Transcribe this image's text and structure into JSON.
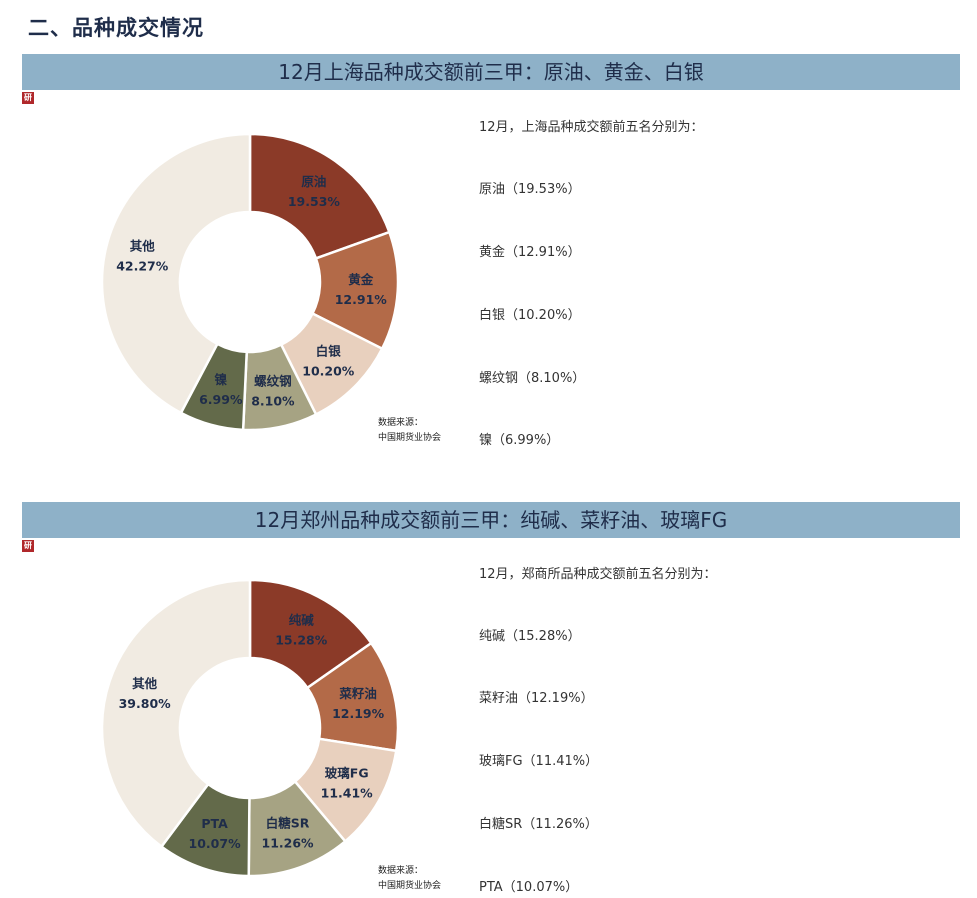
{
  "page": {
    "title": "二、品种成交情况"
  },
  "sections": [
    {
      "banner": "12月上海品种成交额前三甲：原油、黄金、白银",
      "source_label": "数据来源：",
      "source_org": "中国期货业协会",
      "summary_intro": "12月，上海品种成交额前五名分别为：",
      "summary_items": [
        "原油（19.53%）",
        "黄金（12.91%）",
        "白银（10.20%）",
        "螺纹钢（8.10%）",
        "镍（6.99%）"
      ]
    },
    {
      "banner": "12月郑州品种成交额前三甲：纯碱、菜籽油、玻璃FG",
      "source_label": "数据来源：",
      "source_org": "中国期货业协会",
      "summary_intro": "12月，郑商所品种成交额前五名分别为：",
      "summary_items": [
        "纯碱（15.28%）",
        "菜籽油（12.19%）",
        "玻璃FG（11.41%）",
        "白糖SR（11.26%）",
        "PTA（10.07%）"
      ]
    }
  ],
  "chart_data": [
    {
      "type": "pie",
      "donut": true,
      "categories": [
        "原油",
        "黄金",
        "白银",
        "螺纹钢",
        "镍",
        "其他"
      ],
      "values": [
        19.53,
        12.91,
        10.2,
        8.1,
        6.99,
        42.27
      ],
      "labels": [
        "19.53%",
        "12.91%",
        "10.20%",
        "8.10%",
        "6.99%",
        "42.27%"
      ],
      "colors": [
        "#8b3a28",
        "#b36a48",
        "#e8d0be",
        "#a6a383",
        "#636a4a",
        "#f1ebe2"
      ],
      "start_angle": "12 o'clock, clockwise"
    },
    {
      "type": "pie",
      "donut": true,
      "categories": [
        "纯碱",
        "菜籽油",
        "玻璃FG",
        "白糖SR",
        "PTA",
        "其他"
      ],
      "values": [
        15.28,
        12.19,
        11.41,
        11.26,
        10.07,
        39.8
      ],
      "labels": [
        "15.28%",
        "12.19%",
        "11.41%",
        "11.26%",
        "10.07%",
        "39.80%"
      ],
      "colors": [
        "#8b3a28",
        "#b36a48",
        "#e8d0be",
        "#a6a383",
        "#636a4a",
        "#f1ebe2"
      ],
      "start_angle": "12 o'clock, clockwise"
    }
  ],
  "logo": {
    "text": "研"
  }
}
